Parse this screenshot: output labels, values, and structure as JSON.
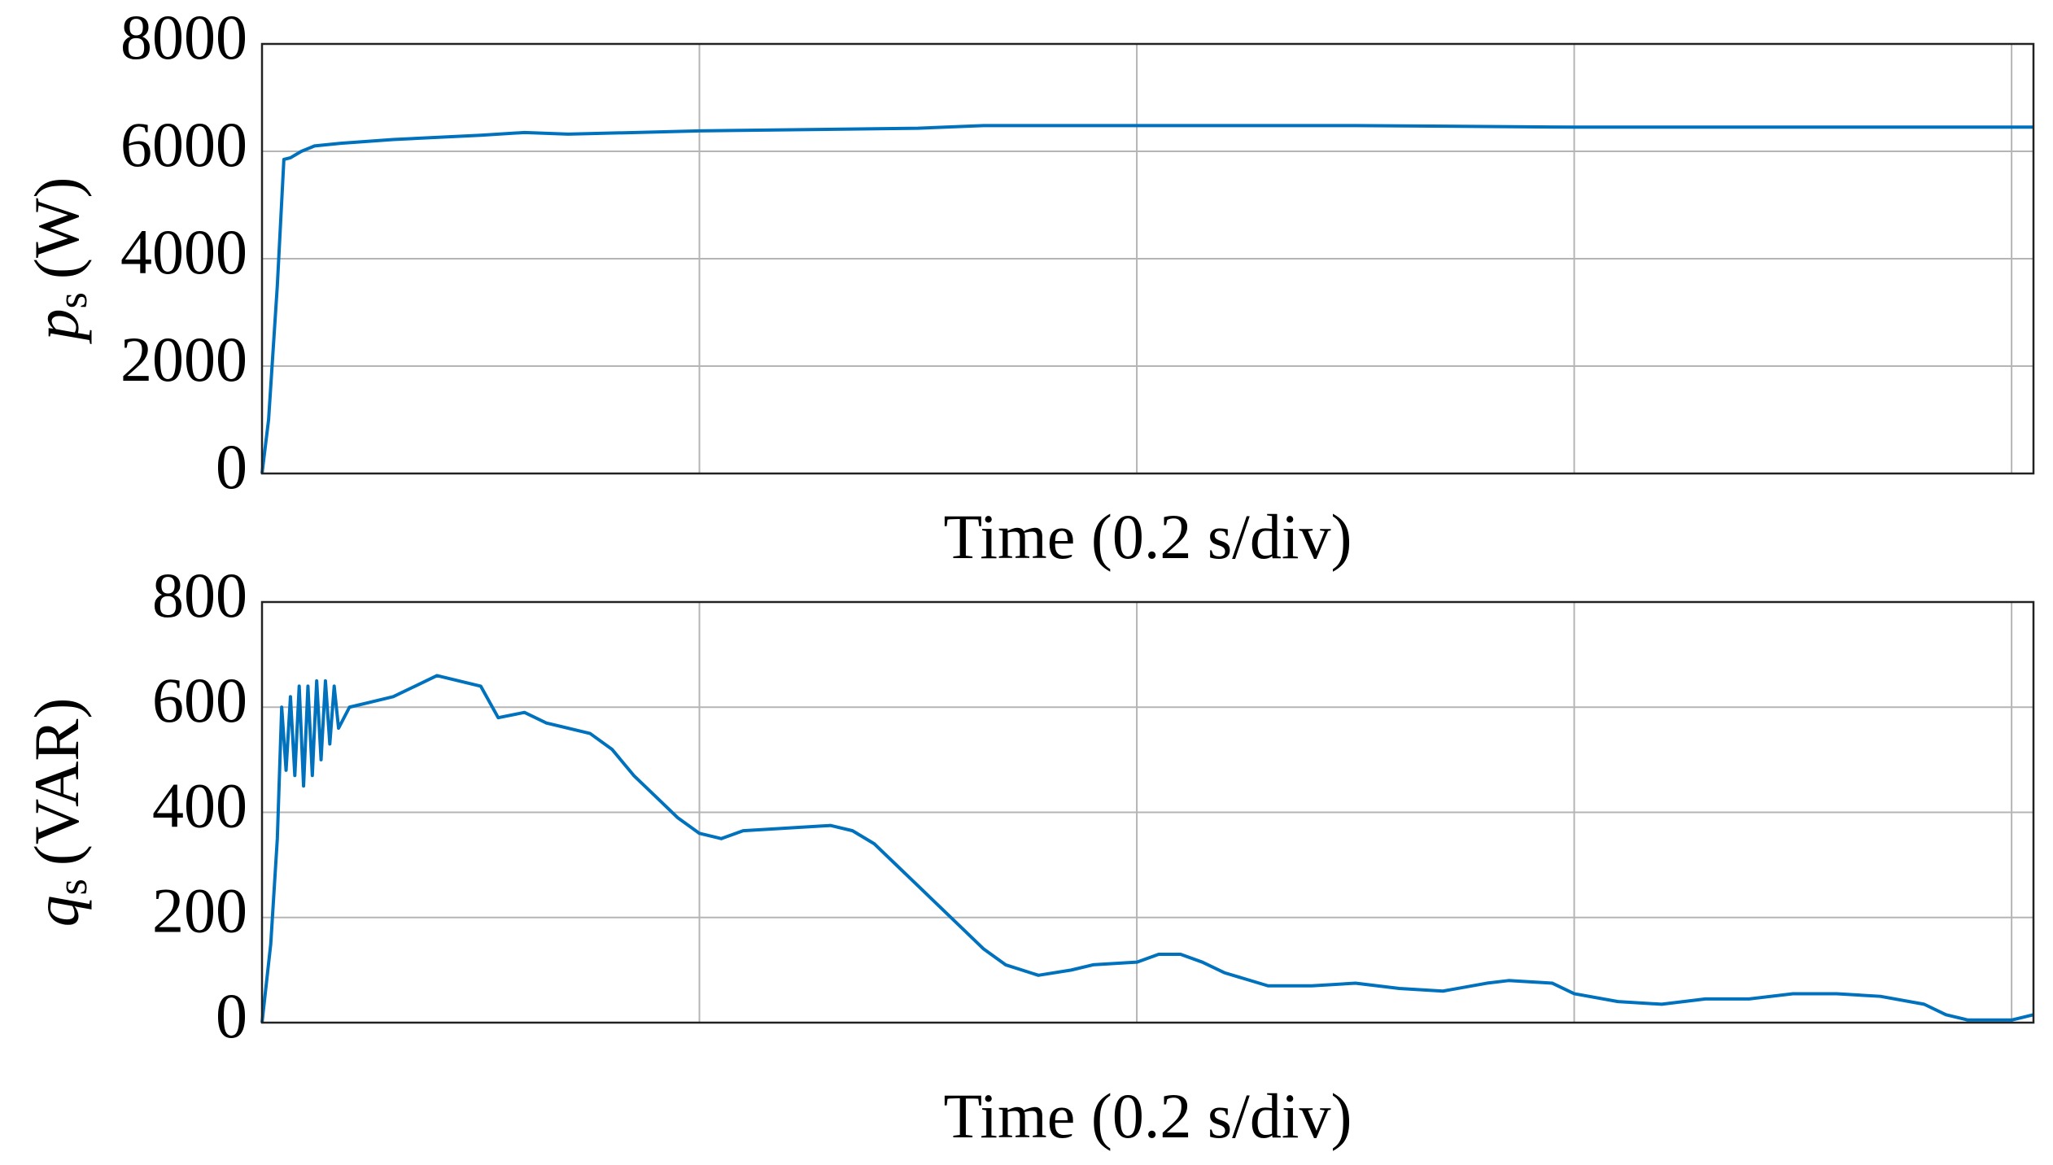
{
  "chart_data": [
    {
      "type": "line",
      "xlabel": "Time (0.2 s/div)",
      "ylabel_var": "p",
      "ylabel_sub": "s",
      "ylabel_unit": "(W)",
      "xlim": [
        0,
        0.81
      ],
      "xticks": [
        0.2,
        0.4,
        0.6,
        0.8
      ],
      "ylim": [
        0,
        8000
      ],
      "yticks": [
        0,
        2000,
        4000,
        6000,
        8000
      ],
      "grid": true,
      "x": [
        0,
        0.003,
        0.007,
        0.01,
        0.013,
        0.018,
        0.024,
        0.036,
        0.06,
        0.1,
        0.12,
        0.14,
        0.2,
        0.3,
        0.33,
        0.4,
        0.5,
        0.6,
        0.7,
        0.81
      ],
      "series": [
        {
          "color": "#0072bd",
          "values": [
            0,
            1000,
            3500,
            5850,
            5880,
            6000,
            6100,
            6150,
            6220,
            6300,
            6350,
            6320,
            6380,
            6430,
            6480,
            6480,
            6480,
            6450,
            6450,
            6450
          ]
        }
      ]
    },
    {
      "type": "line",
      "xlabel": "Time (0.2 s/div)",
      "ylabel_var": "q",
      "ylabel_sub": "s",
      "ylabel_unit": "(VAR)",
      "xlim": [
        0,
        0.81
      ],
      "xticks": [
        0.2,
        0.4,
        0.6,
        0.8
      ],
      "ylim": [
        0,
        800
      ],
      "yticks": [
        0,
        200,
        400,
        600,
        800
      ],
      "grid": true,
      "x": [
        0,
        0.004,
        0.007,
        0.009,
        0.011,
        0.013,
        0.015,
        0.017,
        0.019,
        0.021,
        0.023,
        0.025,
        0.027,
        0.029,
        0.031,
        0.033,
        0.035,
        0.04,
        0.05,
        0.06,
        0.07,
        0.08,
        0.09,
        0.1,
        0.108,
        0.12,
        0.13,
        0.15,
        0.16,
        0.17,
        0.18,
        0.19,
        0.2,
        0.21,
        0.22,
        0.24,
        0.26,
        0.27,
        0.28,
        0.29,
        0.3,
        0.31,
        0.32,
        0.33,
        0.34,
        0.355,
        0.37,
        0.38,
        0.4,
        0.41,
        0.42,
        0.43,
        0.44,
        0.46,
        0.48,
        0.5,
        0.52,
        0.54,
        0.56,
        0.57,
        0.59,
        0.6,
        0.62,
        0.64,
        0.66,
        0.68,
        0.7,
        0.72,
        0.74,
        0.76,
        0.77,
        0.78,
        0.8,
        0.81
      ],
      "series": [
        {
          "color": "#0072bd",
          "values": [
            0,
            150,
            350,
            600,
            480,
            620,
            470,
            640,
            450,
            640,
            470,
            650,
            500,
            650,
            530,
            640,
            560,
            600,
            610,
            620,
            640,
            660,
            650,
            640,
            580,
            590,
            570,
            550,
            520,
            470,
            430,
            390,
            360,
            350,
            365,
            370,
            375,
            365,
            340,
            300,
            260,
            220,
            180,
            140,
            110,
            90,
            100,
            110,
            115,
            130,
            130,
            115,
            95,
            70,
            70,
            75,
            65,
            60,
            75,
            80,
            75,
            55,
            40,
            35,
            45,
            45,
            55,
            55,
            50,
            35,
            15,
            5,
            5,
            15
          ]
        }
      ]
    }
  ]
}
